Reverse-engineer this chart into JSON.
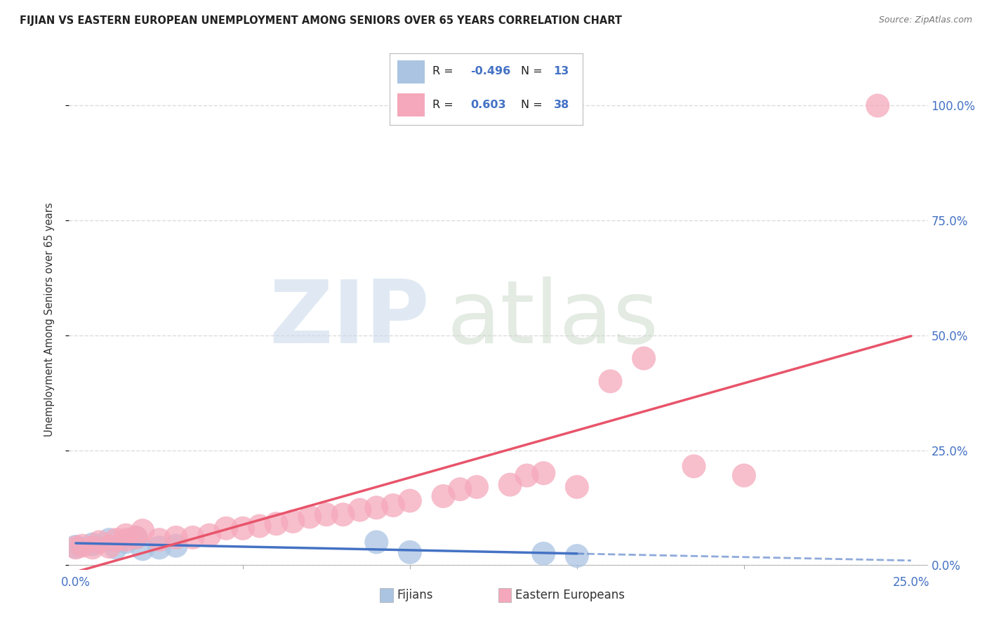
{
  "title": "FIJIAN VS EASTERN EUROPEAN UNEMPLOYMENT AMONG SENIORS OVER 65 YEARS CORRELATION CHART",
  "source": "Source: ZipAtlas.com",
  "ylabel": "Unemployment Among Seniors over 65 years",
  "ytick_labels": [
    "0.0%",
    "25.0%",
    "50.0%",
    "75.0%",
    "100.0%"
  ],
  "ytick_values": [
    0.0,
    0.25,
    0.5,
    0.75,
    1.0
  ],
  "xlim": [
    -0.002,
    0.255
  ],
  "ylim": [
    -0.01,
    1.08
  ],
  "fijian_R": -0.496,
  "fijian_N": 13,
  "eastern_R": 0.603,
  "eastern_N": 38,
  "fijian_color": "#aac4e2",
  "eastern_color": "#f5a8bb",
  "fijian_line_color": "#4472c4",
  "eastern_line_color": "#e8546a",
  "fijian_x": [
    0.0,
    0.005,
    0.01,
    0.012,
    0.015,
    0.018,
    0.02,
    0.025,
    0.03,
    0.09,
    0.1,
    0.14,
    0.15
  ],
  "fijian_y": [
    0.04,
    0.045,
    0.055,
    0.038,
    0.05,
    0.06,
    0.035,
    0.038,
    0.042,
    0.05,
    0.028,
    0.025,
    0.02
  ],
  "eastern_x": [
    0.0,
    0.002,
    0.005,
    0.007,
    0.01,
    0.012,
    0.015,
    0.015,
    0.018,
    0.02,
    0.025,
    0.03,
    0.035,
    0.04,
    0.045,
    0.05,
    0.055,
    0.06,
    0.065,
    0.07,
    0.075,
    0.08,
    0.085,
    0.09,
    0.095,
    0.1,
    0.11,
    0.115,
    0.12,
    0.13,
    0.135,
    0.14,
    0.15,
    0.16,
    0.17,
    0.185,
    0.2,
    0.24
  ],
  "eastern_y": [
    0.038,
    0.042,
    0.038,
    0.05,
    0.04,
    0.055,
    0.055,
    0.065,
    0.06,
    0.075,
    0.055,
    0.06,
    0.06,
    0.065,
    0.08,
    0.08,
    0.085,
    0.09,
    0.095,
    0.105,
    0.11,
    0.11,
    0.12,
    0.125,
    0.13,
    0.14,
    0.15,
    0.165,
    0.17,
    0.175,
    0.195,
    0.2,
    0.17,
    0.4,
    0.45,
    0.215,
    0.195,
    1.0
  ],
  "background_color": "#ffffff",
  "grid_color": "#d8d8d8",
  "title_color": "#222222",
  "right_axis_color": "#4472c4",
  "bottom_axis_color": "#4472c4"
}
